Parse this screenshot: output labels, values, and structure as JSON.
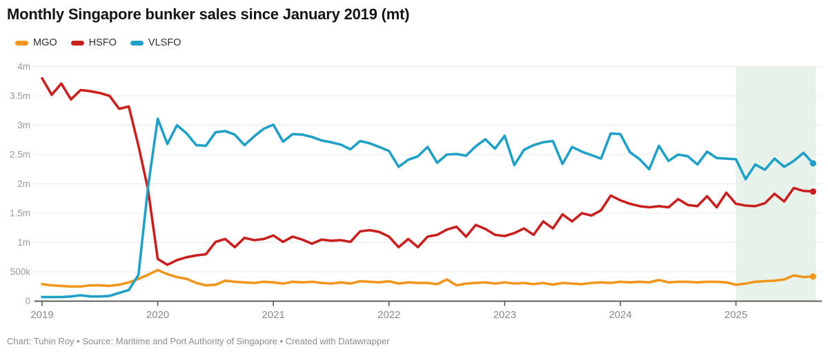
{
  "title": "Monthly Singapore bunker sales since January 2019 (mt)",
  "legend": {
    "items": [
      {
        "label": "MGO"
      },
      {
        "label": "HSFO"
      },
      {
        "label": "VLSFO"
      }
    ]
  },
  "footer": "Chart: Tuhin Roy • Source: Maritime and Port Authority of Singapore • Created with Datawrapper",
  "chart_data": {
    "type": "line",
    "title": "Monthly Singapore bunker sales since January 2019 (mt)",
    "unit": "million mt per month",
    "x_monthly_start": "2019-01",
    "x_monthly_end": "2025-09",
    "x_tick_labels": [
      "2019",
      "2020",
      "2021",
      "2022",
      "2023",
      "2024",
      "2025"
    ],
    "y_tick_labels": [
      "0",
      "500k",
      "1m",
      "1.5m",
      "2m",
      "2.5m",
      "3m",
      "3.5m",
      "4m"
    ],
    "ylim_mt": [
      0,
      4000000
    ],
    "grid": "horizontal",
    "legend_position": "top-left",
    "line_width": 3.6,
    "end_dots": true,
    "colors": {
      "grid": "#e8e8e8",
      "axis": "#4a4a4a",
      "axis_tick_label": "#8a8a8a",
      "y_tick_label": "#9a9a9a",
      "highlight": "#e7f3ea"
    },
    "highlight_region": {
      "from": "2025-01",
      "to": "2025-09",
      "color": "#e7f3ea"
    },
    "series": [
      {
        "name": "MGO",
        "color": "#f0961e",
        "values_million_mt": [
          0.29,
          0.27,
          0.26,
          0.25,
          0.25,
          0.27,
          0.27,
          0.26,
          0.28,
          0.32,
          0.38,
          0.45,
          0.53,
          0.46,
          0.41,
          0.38,
          0.31,
          0.27,
          0.28,
          0.35,
          0.33,
          0.32,
          0.31,
          0.33,
          0.32,
          0.3,
          0.33,
          0.32,
          0.33,
          0.31,
          0.3,
          0.32,
          0.3,
          0.34,
          0.33,
          0.32,
          0.34,
          0.3,
          0.32,
          0.31,
          0.31,
          0.29,
          0.37,
          0.27,
          0.3,
          0.31,
          0.32,
          0.3,
          0.32,
          0.3,
          0.31,
          0.29,
          0.31,
          0.28,
          0.31,
          0.3,
          0.29,
          0.31,
          0.32,
          0.31,
          0.33,
          0.32,
          0.33,
          0.32,
          0.36,
          0.32,
          0.33,
          0.33,
          0.32,
          0.33,
          0.33,
          0.32,
          0.28,
          0.3,
          0.33,
          0.34,
          0.35,
          0.37,
          0.44,
          0.41,
          0.42
        ]
      },
      {
        "name": "HSFO",
        "color": "#c7201f",
        "values_million_mt": [
          3.8,
          3.52,
          3.71,
          3.44,
          3.6,
          3.58,
          3.55,
          3.5,
          3.28,
          3.32,
          2.65,
          1.9,
          0.72,
          0.62,
          0.7,
          0.75,
          0.78,
          0.8,
          1.01,
          1.06,
          0.92,
          1.08,
          1.04,
          1.06,
          1.12,
          1.01,
          1.1,
          1.05,
          0.98,
          1.05,
          1.03,
          1.04,
          1.01,
          1.19,
          1.21,
          1.18,
          1.1,
          0.92,
          1.06,
          0.92,
          1.1,
          1.13,
          1.22,
          1.27,
          1.1,
          1.3,
          1.23,
          1.13,
          1.11,
          1.16,
          1.24,
          1.13,
          1.36,
          1.24,
          1.48,
          1.36,
          1.5,
          1.46,
          1.55,
          1.8,
          1.72,
          1.66,
          1.62,
          1.6,
          1.62,
          1.6,
          1.74,
          1.64,
          1.62,
          1.79,
          1.6,
          1.85,
          1.66,
          1.63,
          1.62,
          1.67,
          1.83,
          1.7,
          1.93,
          1.88,
          1.87
        ]
      },
      {
        "name": "VLSFO",
        "color": "#209fc7",
        "values_million_mt": [
          0.07,
          0.07,
          0.07,
          0.08,
          0.1,
          0.08,
          0.08,
          0.09,
          0.14,
          0.19,
          0.45,
          1.95,
          3.11,
          2.68,
          3.0,
          2.86,
          2.66,
          2.65,
          2.88,
          2.9,
          2.84,
          2.66,
          2.81,
          2.94,
          3.01,
          2.72,
          2.85,
          2.84,
          2.8,
          2.74,
          2.71,
          2.67,
          2.59,
          2.73,
          2.69,
          2.63,
          2.56,
          2.29,
          2.41,
          2.47,
          2.63,
          2.36,
          2.5,
          2.51,
          2.48,
          2.64,
          2.76,
          2.6,
          2.82,
          2.32,
          2.58,
          2.66,
          2.71,
          2.73,
          2.34,
          2.63,
          2.55,
          2.49,
          2.43,
          2.86,
          2.85,
          2.54,
          2.42,
          2.25,
          2.65,
          2.39,
          2.5,
          2.47,
          2.33,
          2.55,
          2.44,
          2.43,
          2.42,
          2.08,
          2.33,
          2.24,
          2.43,
          2.29,
          2.39,
          2.53,
          2.35
        ]
      }
    ]
  }
}
